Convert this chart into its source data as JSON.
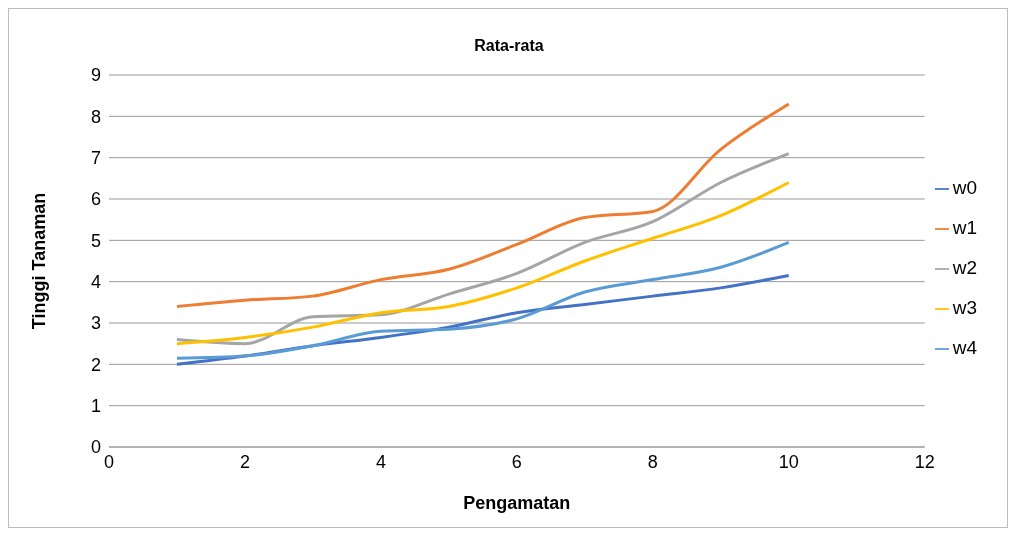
{
  "chart_data": {
    "type": "line",
    "title": "Rata-rata",
    "xlabel": "Pengamatan",
    "ylabel": "Tinggi Tanaman",
    "x": [
      1,
      2,
      3,
      4,
      5,
      6,
      7,
      8,
      9,
      10
    ],
    "series": [
      {
        "name": "w0",
        "color": "#4472c4",
        "values": [
          2.0,
          2.2,
          2.45,
          2.65,
          2.9,
          3.25,
          3.45,
          3.65,
          3.85,
          4.15
        ]
      },
      {
        "name": "w1",
        "color": "#ed7d31",
        "values": [
          3.4,
          3.55,
          3.65,
          4.05,
          4.3,
          4.9,
          5.55,
          5.7,
          7.2,
          8.3
        ]
      },
      {
        "name": "w2",
        "color": "#a5a5a5",
        "values": [
          2.6,
          2.5,
          3.15,
          3.2,
          3.7,
          4.2,
          4.95,
          5.45,
          6.4,
          7.1
        ]
      },
      {
        "name": "w3",
        "color": "#ffc000",
        "values": [
          2.5,
          2.65,
          2.9,
          3.25,
          3.4,
          3.85,
          4.5,
          5.05,
          5.6,
          6.4
        ]
      },
      {
        "name": "w4",
        "color": "#5b9bd5",
        "values": [
          2.15,
          2.2,
          2.45,
          2.8,
          2.85,
          3.1,
          3.75,
          4.05,
          4.35,
          4.95
        ]
      }
    ],
    "xlim": [
      0,
      12
    ],
    "xticks": [
      0,
      2,
      4,
      6,
      8,
      10,
      12
    ],
    "ylim": [
      0,
      9
    ],
    "yticks": [
      0,
      1,
      2,
      3,
      4,
      5,
      6,
      7,
      8,
      9
    ],
    "grid": "y",
    "legend": "right",
    "marker": "none",
    "line_style": "solid"
  }
}
